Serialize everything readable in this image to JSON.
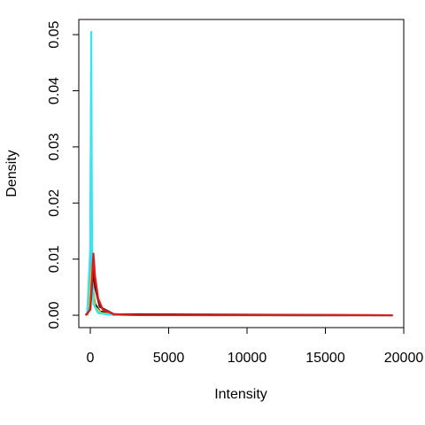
{
  "chart_data": {
    "type": "line",
    "x_label": "Intensity",
    "y_label": "Density",
    "xlim": [
      -734,
      20000
    ],
    "ylim": [
      -0.0022,
      0.0527
    ],
    "xticks": [
      0,
      5000,
      10000,
      15000,
      20000
    ],
    "yticks": [
      {
        "value": 0,
        "label": "0.00"
      },
      {
        "value": 0.01,
        "label": "0.01"
      },
      {
        "value": 0.02,
        "label": "0.02"
      },
      {
        "value": 0.03,
        "label": "0.03"
      },
      {
        "value": 0.04,
        "label": "0.04"
      },
      {
        "value": 0.05,
        "label": "0.05"
      }
    ],
    "series": [
      {
        "color": "#000000",
        "x": [
          -200,
          0,
          80,
          150,
          300,
          600,
          1500,
          14000,
          19300
        ],
        "values": [
          0,
          0.002,
          0.007,
          0.005,
          0.002,
          0.0007,
          0.0001,
          1e-05,
          0
        ]
      },
      {
        "color": "#f5c400",
        "x": [
          -200,
          0,
          60,
          120,
          300,
          700,
          2000,
          16500
        ],
        "values": [
          0,
          0.004,
          0.012,
          0.006,
          0.0015,
          0.0004,
          5e-05,
          0
        ]
      },
      {
        "color": "#5b9bd5",
        "x": [
          -200,
          0,
          50,
          100,
          200,
          500,
          1500,
          16400
        ],
        "values": [
          0,
          0.01,
          0.038,
          0.012,
          0.002,
          0.0004,
          5e-05,
          0
        ]
      },
      {
        "color": "#33e6f2",
        "x": [
          -200,
          0,
          60,
          110,
          200,
          500,
          1500,
          16400
        ],
        "values": [
          0,
          0.012,
          0.0505,
          0.012,
          0.002,
          0.0004,
          5e-05,
          0
        ]
      },
      {
        "color": "#7a0a0a",
        "x": [
          -300,
          0,
          100,
          200,
          300,
          600,
          1500,
          19300
        ],
        "values": [
          0,
          0.001,
          0.005,
          0.008,
          0.005,
          0.0015,
          0.0002,
          0
        ]
      },
      {
        "color": "#d42020",
        "x": [
          -300,
          0,
          100,
          200,
          300,
          500,
          800,
          1500,
          3000,
          19300
        ],
        "values": [
          0,
          0.001,
          0.006,
          0.011,
          0.007,
          0.003,
          0.001,
          0.0002,
          2e-05,
          0
        ]
      }
    ]
  }
}
